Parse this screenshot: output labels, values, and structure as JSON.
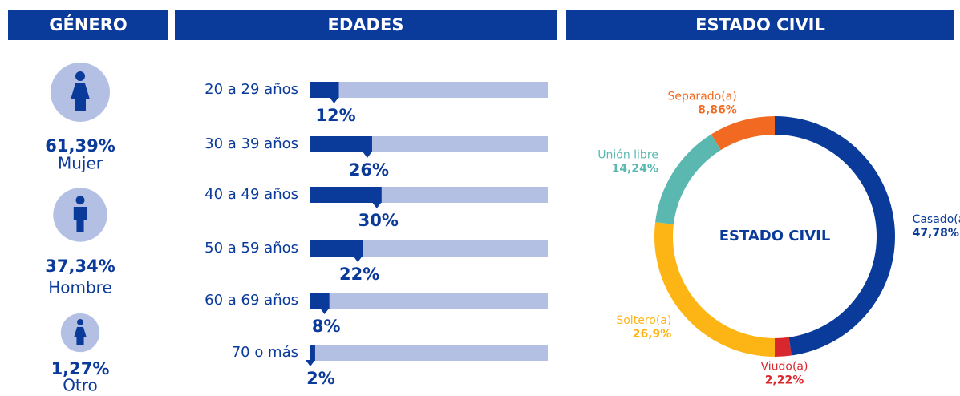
{
  "chart_data": [
    {
      "type": "stat",
      "title": "GÉNERO",
      "categories": [
        "Mujer",
        "Hombre",
        "Otro"
      ],
      "values": [
        61.39,
        37.34,
        1.27
      ],
      "value_labels": [
        "61,39%",
        "37,34%",
        "1,27%"
      ],
      "color": "#b3c0e4",
      "text_color": "#0a3a9a"
    },
    {
      "type": "bar",
      "orientation": "horizontal",
      "title": "EDADES",
      "categories": [
        "20 a 29 años",
        "30 a 39 años",
        "40 a 49 años",
        "50 a 59 años",
        "60 a 69 años",
        "70 o más"
      ],
      "values": [
        12,
        26,
        30,
        22,
        8,
        2
      ],
      "value_labels": [
        "12%",
        "26%",
        "30%",
        "22%",
        "8%",
        "2%"
      ],
      "xlim": [
        0,
        100
      ],
      "color": "#0a3a9a",
      "track_color": "#b3c0e4"
    },
    {
      "type": "pie",
      "donut": true,
      "title": "ESTADO CIVIL",
      "center_label": "ESTADO CIVIL",
      "categories": [
        "Casado(a)",
        "Viudo(a)",
        "Soltero(a)",
        "Unión libre",
        "Separado(a)"
      ],
      "values": [
        47.78,
        2.22,
        26.9,
        14.24,
        8.86
      ],
      "value_labels": [
        "47,78%",
        "2,22%",
        "26,9%",
        "14,24%",
        "8,86%"
      ],
      "colors": [
        "#0a3a9a",
        "#d9272e",
        "#fdb515",
        "#5bb8b0",
        "#f26a21"
      ]
    }
  ]
}
